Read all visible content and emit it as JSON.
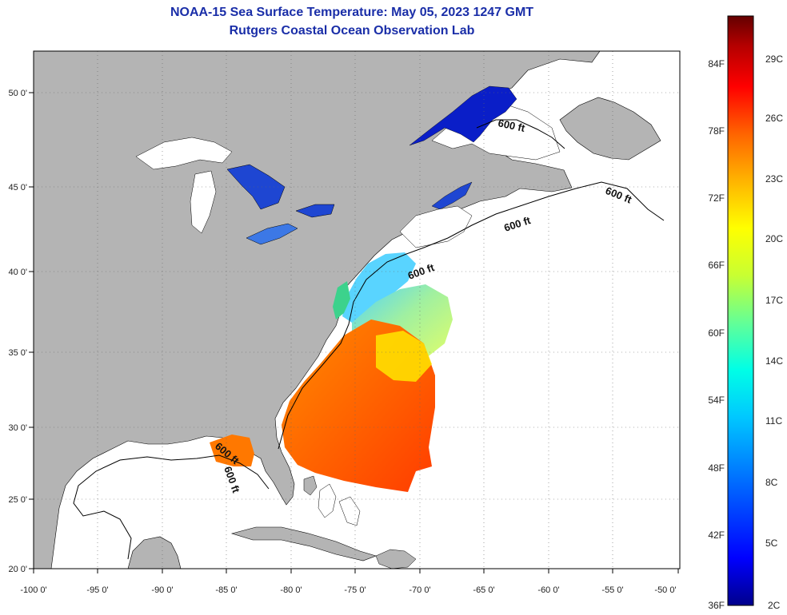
{
  "header": {
    "title": "NOAA-15 Sea Surface Temperature:  May 05, 2023 1247 GMT",
    "subtitle": "Rutgers Coastal Ocean Observation Lab"
  },
  "map": {
    "lon_ticks": [
      "-100 0'",
      "-95 0'",
      "-90 0'",
      "-85 0'",
      "-80 0'",
      "-75 0'",
      "-70 0'",
      "-65 0'",
      "-60 0'",
      "-55 0'",
      "-50 0'"
    ],
    "lat_ticks": [
      "50 0'",
      "45 0'",
      "40 0'",
      "35 0'",
      "30 0'",
      "25 0'",
      "20 0'"
    ],
    "isobath_labels": [
      "600 ft",
      "600 ft",
      "600 ft",
      "600 ft",
      "600 ft",
      "600 ft"
    ],
    "colors": {
      "land": "#b4b4b4",
      "ocean": "#ffffff",
      "grid": "#666666"
    }
  },
  "colorbar": {
    "f_labels": [
      "84F",
      "78F",
      "72F",
      "66F",
      "60F",
      "54F",
      "48F",
      "42F",
      "36F"
    ],
    "c_labels": [
      "29C",
      "26C",
      "23C",
      "20C",
      "17C",
      "14C",
      "11C",
      "8C",
      "5C",
      "2C"
    ],
    "colors": [
      "#00008b",
      "#0000ff",
      "#0064ff",
      "#00c8ff",
      "#00ffe6",
      "#64ff96",
      "#c8ff32",
      "#ffff00",
      "#ffb400",
      "#ff6400",
      "#ff0000",
      "#b40000",
      "#640000"
    ]
  }
}
